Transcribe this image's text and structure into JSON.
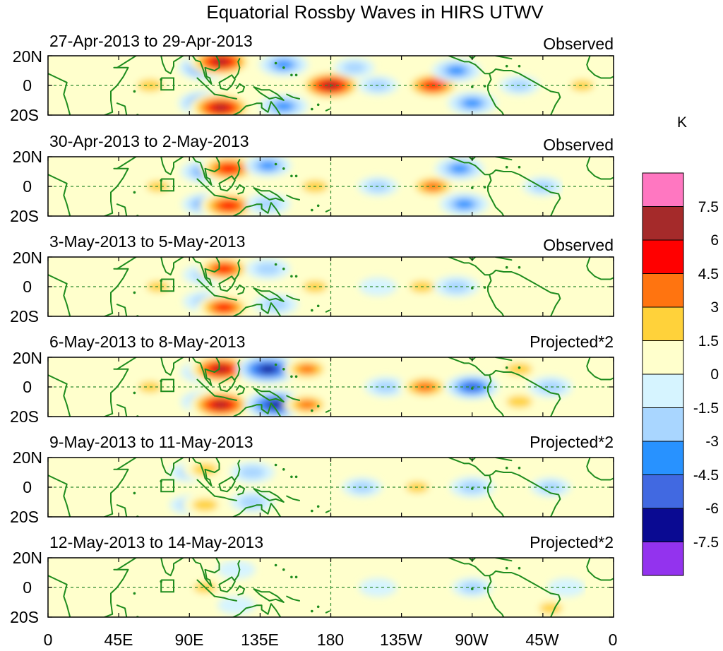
{
  "figure": {
    "title": "Equatorial Rossby Waves in HIRS UTWV",
    "colorbar_unit": "K",
    "colorbar_ticks": [
      "7.5",
      "6",
      "4.5",
      "3",
      "1.5",
      "0",
      "-1.5",
      "-3",
      "-4.5",
      "-6",
      "-7.5"
    ],
    "colorbar_colors": [
      "#ff77c1",
      "#a52a2a",
      "#ff0000",
      "#ff7410",
      "#ffd23a",
      "#ffffcc",
      "#d6f4ff",
      "#a9d6ff",
      "#2892ff",
      "#4169e1",
      "#0a0a92",
      "#9333ee"
    ],
    "x_tick_labels": [
      "0",
      "45E",
      "90E",
      "135E",
      "180",
      "135W",
      "90W",
      "45W",
      "0"
    ],
    "y_tick_labels": [
      "20N",
      "0",
      "20S"
    ],
    "accent_colors": {
      "coast": "#1e8c1e",
      "equator_line": "#2e8b2e"
    }
  },
  "panels": [
    {
      "date_range": "27-Apr-2013 to 29-Apr-2013",
      "tag": "Observed"
    },
    {
      "date_range": "30-Apr-2013 to 2-May-2013",
      "tag": "Observed"
    },
    {
      "date_range": "3-May-2013 to 5-May-2013",
      "tag": "Observed"
    },
    {
      "date_range": "6-May-2013 to 8-May-2013",
      "tag": "Projected*2"
    },
    {
      "date_range": "9-May-2013 to 11-May-2013",
      "tag": "Projected*2"
    },
    {
      "date_range": "12-May-2013 to 14-May-2013",
      "tag": "Projected*2"
    }
  ],
  "chart_data": {
    "type": "heatmap",
    "title": "Equatorial Rossby Waves in HIRS UTWV",
    "units": "K",
    "x_range_deg_east": [
      0,
      360
    ],
    "y_range_deg_lat": [
      -20,
      20
    ],
    "contour_levels": [
      -7.5,
      -6,
      -4.5,
      -3,
      -1.5,
      0,
      1.5,
      3,
      4.5,
      6,
      7.5
    ],
    "panel_anomaly_centers_lonE_lat_K": [
      [
        [
          65,
          0,
          3
        ],
        [
          100,
          12,
          -5
        ],
        [
          110,
          16,
          7
        ],
        [
          100,
          -12,
          -5
        ],
        [
          110,
          -15,
          7
        ],
        [
          150,
          14,
          -4
        ],
        [
          150,
          -14,
          -4
        ],
        [
          180,
          0,
          7
        ],
        [
          195,
          12,
          -2
        ],
        [
          210,
          0,
          -2
        ],
        [
          245,
          0,
          5.5
        ],
        [
          260,
          10,
          -4
        ],
        [
          270,
          -12,
          -4
        ],
        [
          300,
          0,
          -2
        ],
        [
          340,
          0,
          2
        ]
      ],
      [
        [
          70,
          0,
          2
        ],
        [
          100,
          10,
          -4
        ],
        [
          115,
          12,
          6
        ],
        [
          100,
          -12,
          -3.5
        ],
        [
          115,
          -13,
          6
        ],
        [
          140,
          14,
          -3.5
        ],
        [
          140,
          -12,
          -3
        ],
        [
          170,
          0,
          3
        ],
        [
          210,
          0,
          -2
        ],
        [
          245,
          0,
          4
        ],
        [
          262,
          12,
          -4
        ],
        [
          265,
          -12,
          -4
        ],
        [
          315,
          0,
          -2
        ]
      ],
      [
        [
          70,
          0,
          2
        ],
        [
          100,
          8,
          -3
        ],
        [
          112,
          12,
          5
        ],
        [
          100,
          -10,
          -3
        ],
        [
          112,
          -14,
          5
        ],
        [
          140,
          12,
          -3
        ],
        [
          145,
          -12,
          -3
        ],
        [
          170,
          0,
          2.5
        ],
        [
          210,
          0,
          -1.5
        ],
        [
          238,
          0,
          2.5
        ],
        [
          260,
          0,
          -3
        ],
        [
          315,
          0,
          1.5
        ]
      ],
      [
        [
          65,
          0,
          2
        ],
        [
          100,
          10,
          -4
        ],
        [
          110,
          12,
          7
        ],
        [
          100,
          -10,
          -4
        ],
        [
          110,
          -12,
          7
        ],
        [
          140,
          12,
          -7
        ],
        [
          145,
          -12,
          -7
        ],
        [
          165,
          12,
          3.5
        ],
        [
          165,
          -12,
          3.5
        ],
        [
          215,
          0,
          -2.5
        ],
        [
          240,
          0,
          4.5
        ],
        [
          270,
          0,
          -5
        ],
        [
          300,
          12,
          3
        ],
        [
          300,
          -10,
          3
        ],
        [
          320,
          0,
          -3
        ],
        [
          345,
          0,
          1.5
        ]
      ],
      [
        [
          65,
          0,
          1.5
        ],
        [
          90,
          10,
          -2
        ],
        [
          100,
          12,
          3
        ],
        [
          90,
          -12,
          -2
        ],
        [
          100,
          -12,
          3
        ],
        [
          130,
          10,
          -3
        ],
        [
          130,
          -10,
          -3
        ],
        [
          160,
          12,
          1.5
        ],
        [
          160,
          -12,
          1.5
        ],
        [
          200,
          0,
          -2
        ],
        [
          235,
          0,
          2
        ],
        [
          270,
          0,
          -3
        ],
        [
          295,
          12,
          1.5
        ],
        [
          295,
          -12,
          1.5
        ],
        [
          320,
          0,
          -2
        ],
        [
          350,
          0,
          1.5
        ]
      ],
      [
        [
          65,
          0,
          1.5
        ],
        [
          100,
          0,
          2
        ],
        [
          120,
          12,
          -1.5
        ],
        [
          120,
          -12,
          -1.5
        ],
        [
          150,
          0,
          1.5
        ],
        [
          210,
          0,
          -1.5
        ],
        [
          240,
          0,
          1.5
        ],
        [
          270,
          0,
          -2
        ],
        [
          300,
          0,
          1.5
        ],
        [
          320,
          -14,
          2
        ],
        [
          330,
          0,
          -1.5
        ]
      ]
    ]
  }
}
